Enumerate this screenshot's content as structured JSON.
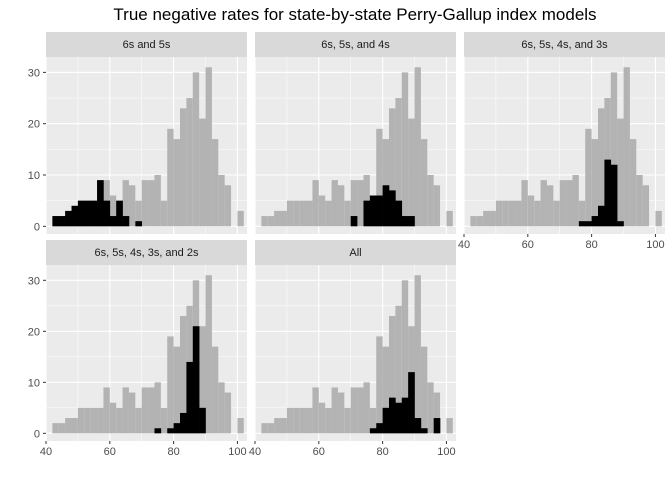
{
  "chart_data": {
    "type": "bar",
    "title": "True negative rates for state-by-state Perry-Gallup index models",
    "xlabel": "",
    "ylabel": "",
    "xlim": [
      40,
      103
    ],
    "ylim": [
      -1.5,
      33
    ],
    "x_ticks": [
      "40",
      "60",
      "80",
      "100"
    ],
    "y_ticks": [
      "0",
      "10",
      "20",
      "30"
    ],
    "bin_width": 2,
    "bin_starts": [
      42,
      44,
      46,
      48,
      50,
      52,
      54,
      56,
      58,
      60,
      62,
      64,
      66,
      68,
      70,
      72,
      74,
      76,
      78,
      80,
      82,
      84,
      86,
      88,
      90,
      92,
      94,
      96,
      98,
      100
    ],
    "colors": {
      "background": "#ebebeb",
      "grid": "#ffffff",
      "strip": "#d9d9d9",
      "all_models": "#b3b3b3",
      "highlight": "#000000"
    },
    "series": [
      {
        "name": "all",
        "values": [
          2,
          2,
          3,
          3,
          5,
          5,
          5,
          5,
          9,
          6,
          5,
          9,
          8,
          5,
          9,
          9,
          10,
          5,
          19,
          17,
          23,
          25,
          30,
          21,
          31,
          17,
          10,
          8,
          0,
          3
        ]
      }
    ],
    "panels": [
      {
        "label": "6s and 5s",
        "highlight": [
          2,
          2,
          3,
          4,
          5,
          5,
          5,
          9,
          5,
          2,
          5,
          2,
          0,
          1,
          0,
          0,
          0,
          0,
          0,
          0,
          0,
          0,
          0,
          0,
          0,
          0,
          0,
          0,
          0,
          0
        ]
      },
      {
        "label": "6s, 5s, and 4s",
        "highlight": [
          0,
          0,
          0,
          0,
          0,
          0,
          0,
          0,
          0,
          0,
          0,
          0,
          0,
          0,
          2,
          0,
          5,
          6,
          6,
          8,
          7,
          5,
          2,
          2,
          0,
          0,
          0,
          0,
          0,
          0
        ]
      },
      {
        "label": "6s, 5s, 4s, and 3s",
        "highlight": [
          0,
          0,
          0,
          0,
          0,
          0,
          0,
          0,
          0,
          0,
          0,
          0,
          0,
          0,
          0,
          0,
          0,
          1,
          1,
          2,
          4,
          13,
          12,
          1,
          0,
          0,
          0,
          0,
          0,
          0
        ]
      },
      {
        "label": "6s, 5s, 4s, 3s, and 2s",
        "highlight": [
          0,
          0,
          0,
          0,
          0,
          0,
          0,
          0,
          0,
          0,
          0,
          0,
          0,
          0,
          0,
          0,
          1,
          0,
          1,
          2,
          4,
          14,
          21,
          5,
          0,
          0,
          0,
          0,
          0,
          0
        ]
      },
      {
        "label": "All",
        "highlight": [
          0,
          0,
          0,
          0,
          0,
          0,
          0,
          0,
          0,
          0,
          0,
          0,
          0,
          0,
          0,
          0,
          0,
          1,
          2,
          5,
          7,
          6,
          7,
          12,
          3,
          1,
          0,
          3,
          0,
          0
        ]
      }
    ]
  }
}
